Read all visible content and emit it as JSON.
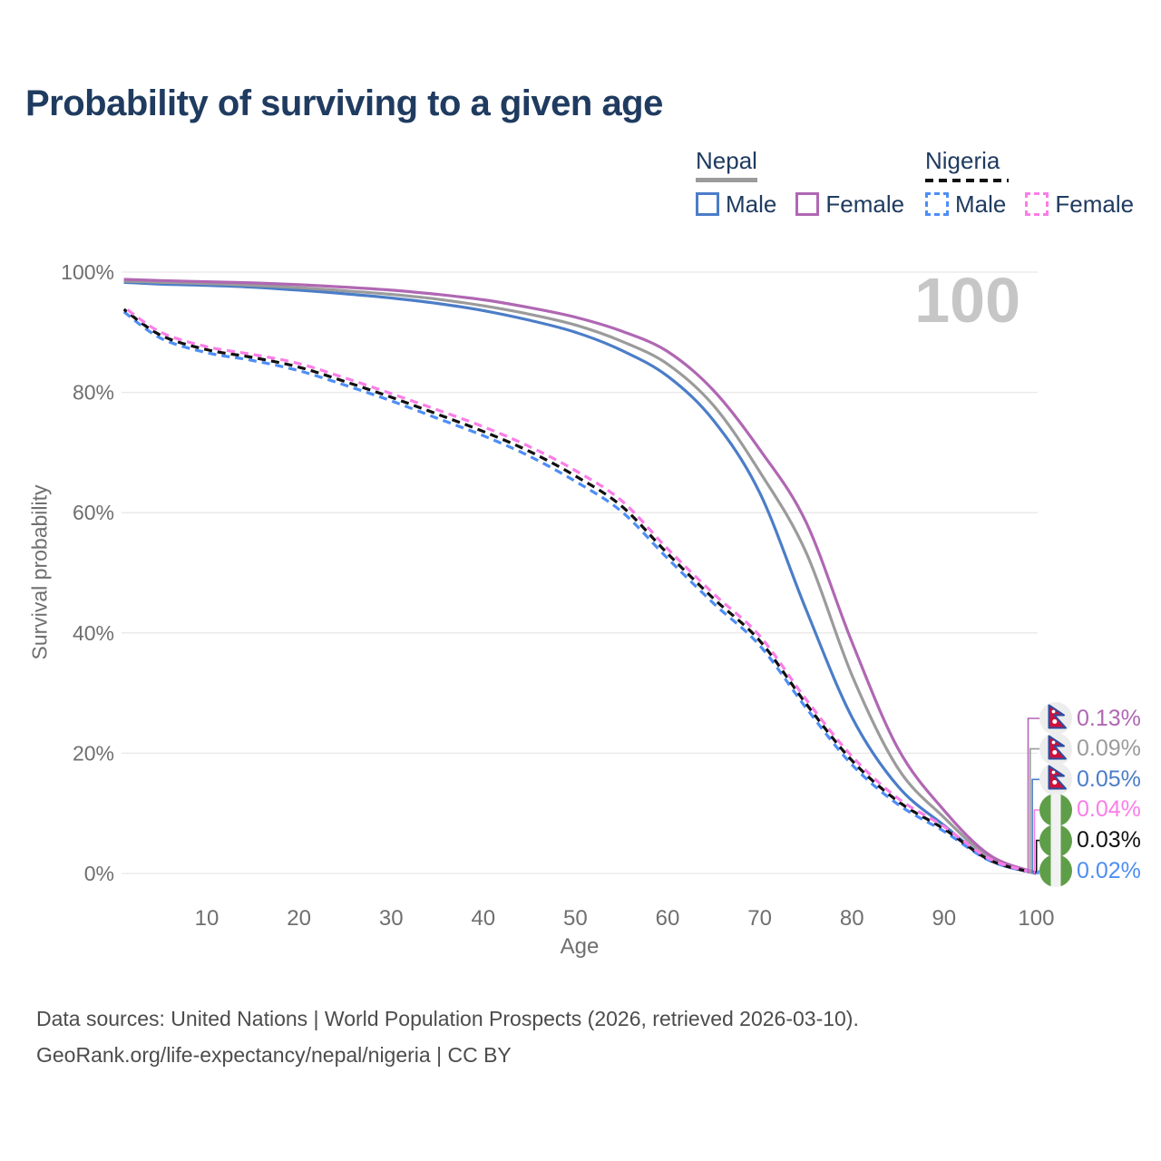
{
  "title": "Probability of surviving to a given age",
  "legend": {
    "nepal": {
      "country": "Nepal",
      "male_label": "Male",
      "female_label": "Female"
    },
    "nigeria": {
      "country": "Nigeria",
      "male_label": "Male",
      "female_label": "Female"
    }
  },
  "colors": {
    "title": "#1f3b60",
    "axis_text": "#6f6f6f",
    "grid": "#e8e8e8",
    "watermark": "#c6c6c6",
    "footer": "#4c4c4c",
    "nepal_male": "#4b7dc8",
    "nepal_female": "#b067b3",
    "nepal_both": "#9b9b9b",
    "nigeria_male": "#4e8ef5",
    "nigeria_female": "#fb7de7",
    "nigeria_both": "#111111",
    "flag_nepal_red": "#d0103a",
    "flag_nepal_blue": "#2a4da0",
    "flag_nigeria_green": "#5f9e49"
  },
  "chart_data": {
    "type": "line",
    "title": "Probability of surviving to a given age",
    "xlabel": "Age",
    "ylabel": "Survival probability",
    "watermark": "100",
    "grid": true,
    "legend_position": "top-right",
    "xlim": [
      0,
      100
    ],
    "ylim": [
      0,
      100
    ],
    "x_ticks": [
      {
        "v": 10,
        "label": "10"
      },
      {
        "v": 20,
        "label": "20"
      },
      {
        "v": 30,
        "label": "30"
      },
      {
        "v": 40,
        "label": "40"
      },
      {
        "v": 50,
        "label": "50"
      },
      {
        "v": 60,
        "label": "60"
      },
      {
        "v": 70,
        "label": "70"
      },
      {
        "v": 80,
        "label": "80"
      },
      {
        "v": 90,
        "label": "90"
      },
      {
        "v": 100,
        "label": "100"
      }
    ],
    "y_ticks": [
      {
        "v": 0,
        "label": "0%"
      },
      {
        "v": 20,
        "label": "20%"
      },
      {
        "v": 40,
        "label": "40%"
      },
      {
        "v": 60,
        "label": "60%"
      },
      {
        "v": 80,
        "label": "80%"
      },
      {
        "v": 100,
        "label": "100%"
      }
    ],
    "ages": [
      1,
      5,
      10,
      15,
      20,
      25,
      30,
      35,
      40,
      45,
      50,
      55,
      60,
      65,
      70,
      75,
      80,
      85,
      90,
      95,
      100
    ],
    "series": [
      {
        "name": "Nepal Female",
        "country": "Nepal",
        "sex": "Female",
        "style": "solid",
        "color_key": "nepal_female",
        "flag": "nepal",
        "end_label": "0.13%",
        "values": [
          98.8,
          98.6,
          98.4,
          98.2,
          97.9,
          97.5,
          97.0,
          96.3,
          95.4,
          94.1,
          92.5,
          90.2,
          86.8,
          80.3,
          70.5,
          58.5,
          38.5,
          20.8,
          10.5,
          3.0,
          0.13
        ]
      },
      {
        "name": "Nepal Both sexes",
        "country": "Nepal",
        "sex": "Both",
        "style": "solid",
        "color_key": "nepal_both",
        "flag": "nepal",
        "end_label": "0.09%",
        "values": [
          98.5,
          98.3,
          98.1,
          97.8,
          97.4,
          96.9,
          96.3,
          95.5,
          94.4,
          93.0,
          91.2,
          88.5,
          84.7,
          77.8,
          66.8,
          53.5,
          33.0,
          17.5,
          9.3,
          2.6,
          0.09
        ]
      },
      {
        "name": "Nepal Male",
        "country": "Nepal",
        "sex": "Male",
        "style": "solid",
        "color_key": "nepal_male",
        "flag": "nepal",
        "end_label": "0.05%",
        "values": [
          98.3,
          98.0,
          97.8,
          97.5,
          97.0,
          96.4,
          95.7,
          94.8,
          93.6,
          92.0,
          90.0,
          87.0,
          82.7,
          75.3,
          63.3,
          44.0,
          26.0,
          14.5,
          8.0,
          2.2,
          0.05
        ]
      },
      {
        "name": "Nigeria Female",
        "country": "Nigeria",
        "sex": "Female",
        "style": "dashed",
        "color_key": "nigeria_female",
        "flag": "nigeria",
        "end_label": "0.04%",
        "values": [
          94.2,
          90.0,
          87.6,
          86.3,
          84.8,
          82.4,
          79.8,
          77.1,
          74.3,
          71.0,
          67.0,
          62.0,
          54.0,
          46.5,
          39.5,
          29.0,
          19.5,
          12.5,
          7.8,
          2.4,
          0.04
        ]
      },
      {
        "name": "Nigeria Both sexes",
        "country": "Nigeria",
        "sex": "Both",
        "style": "dashed",
        "color_key": "nigeria_both",
        "flag": "nigeria",
        "end_label": "0.03%",
        "values": [
          93.8,
          89.5,
          87.1,
          85.8,
          84.2,
          81.8,
          79.2,
          76.4,
          73.5,
          70.2,
          66.1,
          61.1,
          53.2,
          45.7,
          38.7,
          28.3,
          18.8,
          12.0,
          7.4,
          2.2,
          0.03
        ]
      },
      {
        "name": "Nigeria Male",
        "country": "Nigeria",
        "sex": "Male",
        "style": "dashed",
        "color_key": "nigeria_male",
        "flag": "nigeria",
        "end_label": "0.02%",
        "values": [
          93.4,
          89.0,
          86.6,
          85.3,
          83.6,
          81.2,
          78.6,
          75.7,
          72.8,
          69.4,
          65.2,
          60.2,
          52.4,
          44.9,
          37.9,
          27.6,
          18.1,
          11.5,
          7.0,
          2.1,
          0.02
        ]
      }
    ]
  },
  "footer": {
    "line1": "Data sources: United Nations | World Population Prospects (2026, retrieved 2026-03-10).",
    "line2": "GeoRank.org/life-expectancy/nepal/nigeria | CC BY"
  }
}
